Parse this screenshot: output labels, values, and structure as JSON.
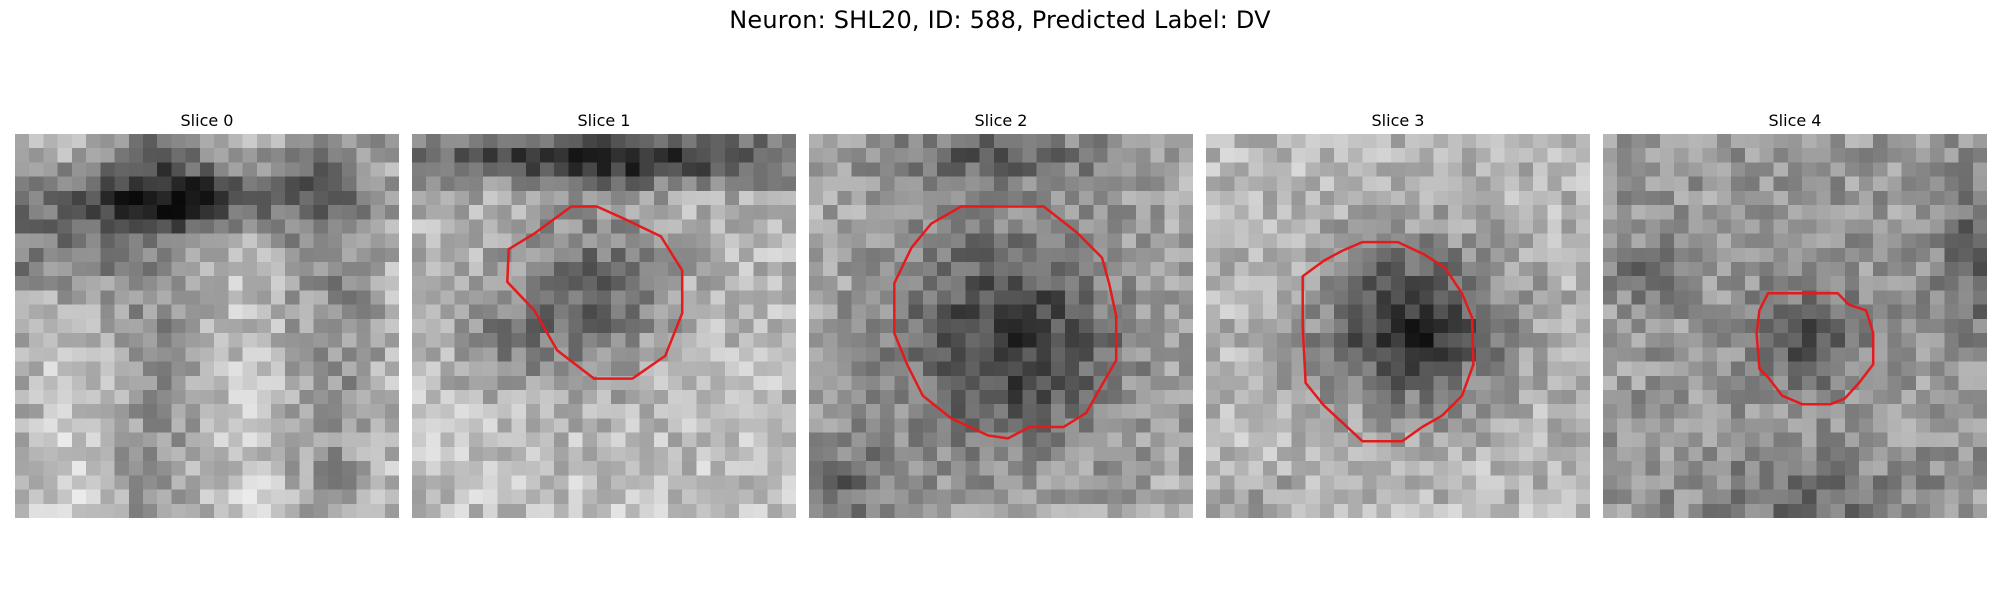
{
  "figure": {
    "title": "Neuron: SHL20, ID: 588, Predicted Label: DV"
  },
  "panels": [
    {
      "title": "Slice 0",
      "has_contour": false
    },
    {
      "title": "Slice 1",
      "has_contour": true
    },
    {
      "title": "Slice 2",
      "has_contour": true
    },
    {
      "title": "Slice 3",
      "has_contour": true
    },
    {
      "title": "Slice 4",
      "has_contour": true
    }
  ],
  "colors": {
    "contour": "#e41a1c",
    "background": "#ffffff",
    "colormap": "gray"
  }
}
